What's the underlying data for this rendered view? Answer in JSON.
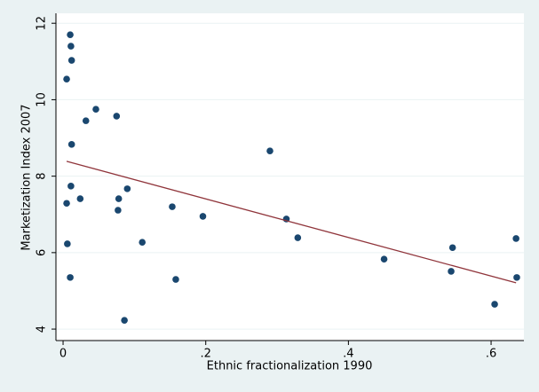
{
  "chart_data": {
    "type": "scatter",
    "xlabel": "Ethnic fractionalization 1990",
    "ylabel": "Marketization Index 2007",
    "x": [
      0.01,
      0.011,
      0.012,
      0.005,
      0.046,
      0.032,
      0.075,
      0.012,
      0.011,
      0.024,
      0.005,
      0.09,
      0.078,
      0.077,
      0.153,
      0.196,
      0.006,
      0.111,
      0.01,
      0.158,
      0.086,
      0.29,
      0.313,
      0.329,
      0.45,
      0.544,
      0.546,
      0.635,
      0.636,
      0.605
    ],
    "values": [
      11.7,
      11.4,
      11.03,
      10.54,
      9.75,
      9.45,
      9.57,
      8.83,
      7.74,
      7.41,
      7.29,
      7.67,
      7.41,
      7.11,
      7.2,
      6.95,
      6.23,
      6.27,
      5.35,
      5.3,
      4.23,
      8.66,
      6.88,
      6.39,
      5.83,
      5.51,
      6.13,
      6.37,
      5.35,
      4.65
    ],
    "color": "#1a476f",
    "fit": {
      "x": [
        0.005,
        0.635
      ],
      "values": [
        8.39,
        5.21
      ],
      "color": "#90353b"
    },
    "xlim": [
      -0.01,
      0.646
    ],
    "ylim": [
      3.7,
      12.26
    ],
    "xticks": [
      0,
      {
        "value": 0.2,
        "label": ".2"
      },
      {
        "value": 0.4,
        "label": ".4"
      },
      {
        "value": 0.6,
        "label": ".6"
      }
    ],
    "yticks": [
      4,
      6,
      8,
      10,
      12
    ],
    "grid": true
  }
}
